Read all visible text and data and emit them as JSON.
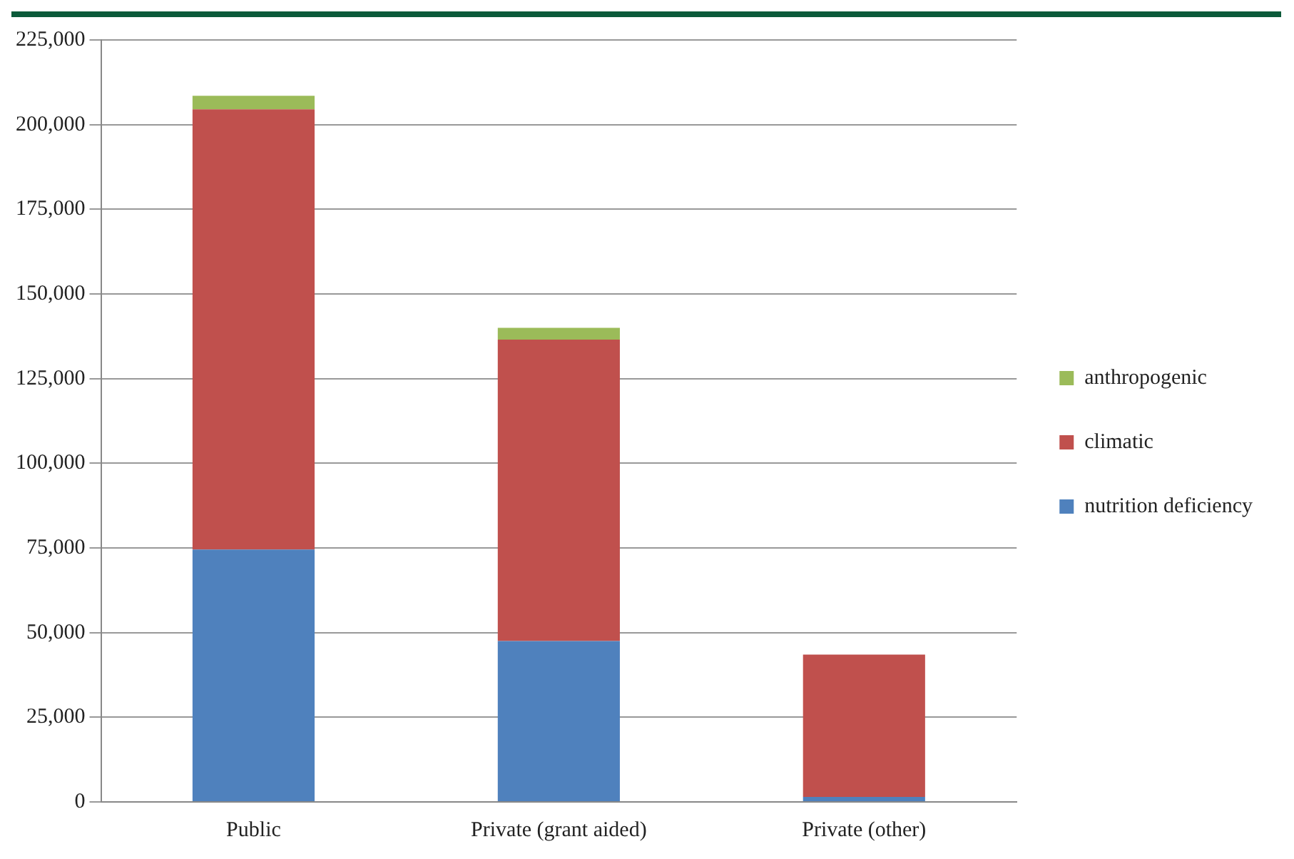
{
  "chart_data": {
    "type": "bar",
    "stacked": true,
    "categories": [
      "Public",
      "Private (grant aided)",
      "Private (other)"
    ],
    "series": [
      {
        "name": "nutrition deficiency",
        "color": "#4f81bd",
        "values": [
          74500,
          47500,
          1500
        ]
      },
      {
        "name": "climatic",
        "color": "#c0504d",
        "values": [
          130000,
          89000,
          42000
        ]
      },
      {
        "name": "anthropogenic",
        "color": "#9bbb59",
        "values": [
          4000,
          3500,
          0
        ]
      }
    ],
    "ylim": [
      0,
      225000
    ],
    "yticks": [
      {
        "value": 0,
        "label": "0"
      },
      {
        "value": 25000,
        "label": "25,000"
      },
      {
        "value": 50000,
        "label": "50,000"
      },
      {
        "value": 75000,
        "label": "75,000"
      },
      {
        "value": 100000,
        "label": "100,000"
      },
      {
        "value": 125000,
        "label": "125,000"
      },
      {
        "value": 150000,
        "label": "150,000"
      },
      {
        "value": 175000,
        "label": "175,000"
      },
      {
        "value": 200000,
        "label": "200,000"
      },
      {
        "value": 225000,
        "label": "225,000"
      }
    ],
    "grid": "y",
    "legend": "right"
  }
}
